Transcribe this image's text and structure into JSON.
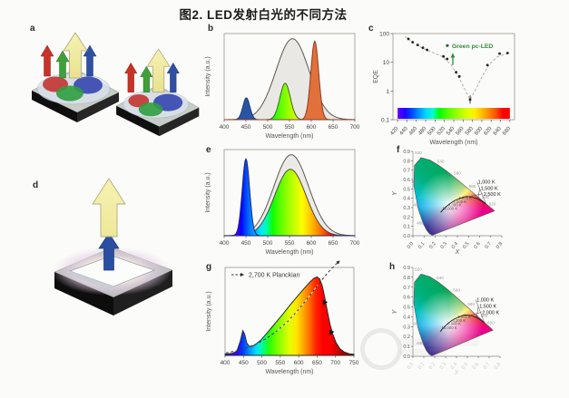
{
  "figure": {
    "title": "图2.  LED发射白光的不同方法",
    "panel_labels": {
      "a": "a",
      "b": "b",
      "c": "c",
      "d": "d",
      "e": "e",
      "f": "f",
      "g": "g",
      "h": "h"
    }
  },
  "cie_locus": [
    [
      0.1741,
      0.005
    ],
    [
      0.15,
      0.02
    ],
    [
      0.1241,
      0.0578
    ],
    [
      0.0913,
      0.1327
    ],
    [
      0.0454,
      0.295
    ],
    [
      0.0082,
      0.5384
    ],
    [
      0.0139,
      0.7502
    ],
    [
      0.0743,
      0.8338
    ],
    [
      0.1547,
      0.8059
    ],
    [
      0.2296,
      0.7543
    ],
    [
      0.3023,
      0.6923
    ],
    [
      0.3731,
      0.6245
    ],
    [
      0.4441,
      0.5547
    ],
    [
      0.5125,
      0.4866
    ],
    [
      0.5752,
      0.4242
    ],
    [
      0.627,
      0.3725
    ],
    [
      0.6658,
      0.334
    ],
    [
      0.6915,
      0.3083
    ],
    [
      0.7347,
      0.2653
    ]
  ],
  "chart_data": [
    {
      "id": "b",
      "type": "area",
      "xlabel": "Wavelength (nm)",
      "ylabel": "Intensity (a.u.)",
      "xlim": [
        400,
        700
      ],
      "xticks": [
        400,
        450,
        500,
        550,
        600,
        650,
        700
      ],
      "series": [
        {
          "name": "phosphor-envelope",
          "shape": "gaussian",
          "center": 557,
          "sigma": 38,
          "height": 1.0,
          "fill": "#e9e8e4",
          "stroke": "#5d574f"
        },
        {
          "name": "blue-led-peak",
          "shape": "gaussian",
          "center": 451,
          "sigma": 8,
          "height": 0.27,
          "fill": "#2b55a3",
          "stroke": "#1c3a78"
        },
        {
          "name": "green-led-peak",
          "shape": "gaussian",
          "center": 540,
          "sigma": 12,
          "height": 0.45,
          "fill": "spectral",
          "stroke": "#43602c"
        },
        {
          "name": "orange-led-peak",
          "shape": "gaussian",
          "center": 608,
          "sigma": 9,
          "height": 0.97,
          "fill": "#e0713a",
          "stroke": "#8f3c22"
        }
      ]
    },
    {
      "id": "c",
      "type": "scatter-log",
      "xlabel": "Wavelength (nm)",
      "ylabel": "EQE",
      "xlim": [
        410,
        670
      ],
      "xticks": [
        420,
        440,
        460,
        480,
        500,
        520,
        540,
        560,
        580,
        600,
        620,
        640,
        660
      ],
      "yticks": [
        0.1,
        1,
        10,
        100
      ],
      "points": [
        [
          443,
          65
        ],
        [
          452,
          50
        ],
        [
          463,
          40
        ],
        [
          474,
          32
        ],
        [
          483,
          27
        ],
        [
          518,
          16
        ],
        [
          526,
          13
        ],
        [
          545,
          4.5
        ],
        [
          552,
          3.2
        ],
        [
          575,
          0.5
        ],
        [
          612,
          8
        ],
        [
          638,
          20
        ],
        [
          655,
          21
        ]
      ],
      "trend": [
        [
          435,
          80
        ],
        [
          455,
          46
        ],
        [
          475,
          30
        ],
        [
          495,
          22
        ],
        [
          515,
          16
        ],
        [
          535,
          8
        ],
        [
          555,
          2.2
        ],
        [
          575,
          0.5
        ],
        [
          588,
          1.2
        ],
        [
          600,
          3
        ],
        [
          615,
          8
        ],
        [
          632,
          15
        ],
        [
          660,
          22
        ]
      ],
      "annotation": {
        "label": "Green pc-LED",
        "color": "#2e8b3a",
        "x": 538,
        "dot_y": 38,
        "arrow_from": 8,
        "arrow_to": 19
      },
      "colorbar": {
        "from": 420,
        "to": 660
      }
    },
    {
      "id": "e",
      "type": "area",
      "xlabel": "Wavelength (nm)",
      "ylabel": "Intensity (a.u.)",
      "xlim": [
        400,
        700
      ],
      "xticks": [
        400,
        450,
        500,
        550,
        600,
        650,
        700
      ],
      "series": [
        {
          "name": "phosphor-envelope",
          "shape": "gaussian",
          "center": 554,
          "sigma": 40,
          "height": 1.0,
          "fill": "#eceae6",
          "stroke": "#5d574f"
        },
        {
          "name": "phosphor-emission",
          "shape": "gaussian",
          "center": 552,
          "sigma": 36,
          "height": 0.82,
          "fill": "spectral",
          "stroke": "#4d4a40"
        },
        {
          "name": "blue-led-peak",
          "shape": "gaussian",
          "center": 450,
          "sigma": 8.5,
          "height": 0.95,
          "fill": "spectral",
          "stroke": "#27246e"
        }
      ]
    },
    {
      "id": "f",
      "type": "cie",
      "xlabel": "X",
      "ylabel": "Y",
      "xlim": [
        0,
        0.8
      ],
      "ylim": [
        0,
        0.9
      ],
      "xticks": [
        0.0,
        0.1,
        0.2,
        0.3,
        0.4,
        0.5,
        0.6,
        0.7,
        0.8
      ],
      "yticks": [
        0.0,
        0.1,
        0.2,
        0.3,
        0.4,
        0.5,
        0.6,
        0.7,
        0.8,
        0.9
      ],
      "faded_xaxis": false,
      "planckian": [
        [
          0.655,
          0.342
        ],
        [
          0.62,
          0.37
        ],
        [
          0.585,
          0.393
        ],
        [
          0.555,
          0.405
        ],
        [
          0.527,
          0.413
        ],
        [
          0.5,
          0.417
        ],
        [
          0.475,
          0.418
        ],
        [
          0.455,
          0.412
        ],
        [
          0.437,
          0.404
        ],
        [
          0.405,
          0.39
        ],
        [
          0.38,
          0.377
        ],
        [
          0.352,
          0.358
        ],
        [
          0.322,
          0.332
        ],
        [
          0.295,
          0.305
        ],
        [
          0.28,
          0.288
        ],
        [
          0.262,
          0.265
        ],
        [
          0.25,
          0.25
        ]
      ],
      "temperature_labels": [
        {
          "text": "1,000 K",
          "x": 0.585,
          "y": 0.555,
          "tx": 0.655,
          "ty": 0.345
        },
        {
          "text": "1,500 K",
          "x": 0.61,
          "y": 0.49,
          "tx": 0.585,
          "ty": 0.395
        },
        {
          "text": "2,500 K",
          "x": 0.635,
          "y": 0.428,
          "tx": 0.5,
          "ty": 0.418
        }
      ],
      "inner_labels": [
        {
          "text": "3,000 K",
          "x": 0.41,
          "y": 0.385
        },
        {
          "text": "4,000 K",
          "x": 0.362,
          "y": 0.35
        },
        {
          "text": "6,000 K",
          "x": 0.318,
          "y": 0.315
        },
        {
          "text": "10,000 K",
          "x": 0.262,
          "y": 0.275
        }
      ],
      "boundary_labels": [
        {
          "text": "520",
          "x": 0.05,
          "y": 0.87
        },
        {
          "text": "540",
          "x": 0.25,
          "y": 0.78
        },
        {
          "text": "560",
          "x": 0.4,
          "y": 0.655
        },
        {
          "text": "580",
          "x": 0.535,
          "y": 0.515
        },
        {
          "text": "600",
          "x": 0.655,
          "y": 0.395
        },
        {
          "text": "620",
          "x": 0.715,
          "y": 0.325
        },
        {
          "text": "500",
          "x": 0.02,
          "y": 0.56
        },
        {
          "text": "490",
          "x": 0.035,
          "y": 0.315
        },
        {
          "text": "480",
          "x": 0.065,
          "y": 0.12
        }
      ]
    },
    {
      "id": "g",
      "type": "area-curve",
      "xlabel": "Wavelength (nm)",
      "ylabel": "Intensity (a.u.)",
      "xlim": [
        400,
        750
      ],
      "xticks": [
        400,
        450,
        500,
        550,
        600,
        650,
        700,
        750
      ],
      "legend": {
        "label": "2,700 K Planckian"
      },
      "curve": [
        [
          400,
          0.015
        ],
        [
          420,
          0.025
        ],
        [
          432,
          0.05
        ],
        [
          442,
          0.18
        ],
        [
          448,
          0.3
        ],
        [
          453,
          0.26
        ],
        [
          459,
          0.15
        ],
        [
          466,
          0.11
        ],
        [
          474,
          0.11
        ],
        [
          485,
          0.14
        ],
        [
          498,
          0.19
        ],
        [
          512,
          0.26
        ],
        [
          527,
          0.34
        ],
        [
          542,
          0.42
        ],
        [
          557,
          0.5
        ],
        [
          572,
          0.585
        ],
        [
          587,
          0.665
        ],
        [
          602,
          0.745
        ],
        [
          617,
          0.82
        ],
        [
          630,
          0.885
        ],
        [
          642,
          0.935
        ],
        [
          650,
          0.95
        ],
        [
          657,
          0.925
        ],
        [
          664,
          0.84
        ],
        [
          671,
          0.7
        ],
        [
          678,
          0.53
        ],
        [
          685,
          0.38
        ],
        [
          693,
          0.25
        ],
        [
          702,
          0.15
        ],
        [
          712,
          0.08
        ],
        [
          724,
          0.04
        ],
        [
          738,
          0.02
        ],
        [
          750,
          0.013
        ]
      ],
      "planckian": [
        [
          402,
          0.03
        ],
        [
          430,
          0.055
        ],
        [
          458,
          0.09
        ],
        [
          486,
          0.14
        ],
        [
          514,
          0.21
        ],
        [
          542,
          0.3
        ],
        [
          570,
          0.41
        ],
        [
          598,
          0.545
        ],
        [
          626,
          0.7
        ],
        [
          652,
          0.85
        ],
        [
          676,
          0.985
        ],
        [
          696,
          1.08
        ],
        [
          710,
          1.14
        ]
      ]
    },
    {
      "id": "h",
      "type": "cie",
      "xlabel": "X",
      "ylabel": "Y",
      "xlim": [
        0,
        0.8
      ],
      "ylim": [
        0,
        0.9
      ],
      "xticks": [
        0.0,
        0.1,
        0.2,
        0.3,
        0.4,
        0.5,
        0.6,
        0.7,
        0.8
      ],
      "yticks": [
        0.0,
        0.1,
        0.2,
        0.3,
        0.4,
        0.5,
        0.6,
        0.7,
        0.8,
        0.9
      ],
      "faded_xaxis": true,
      "planckian": [
        [
          0.655,
          0.342
        ],
        [
          0.62,
          0.37
        ],
        [
          0.585,
          0.393
        ],
        [
          0.555,
          0.405
        ],
        [
          0.527,
          0.413
        ],
        [
          0.5,
          0.417
        ],
        [
          0.475,
          0.418
        ],
        [
          0.455,
          0.412
        ],
        [
          0.437,
          0.404
        ],
        [
          0.405,
          0.39
        ],
        [
          0.38,
          0.377
        ],
        [
          0.352,
          0.358
        ],
        [
          0.322,
          0.332
        ],
        [
          0.295,
          0.305
        ],
        [
          0.28,
          0.288
        ],
        [
          0.262,
          0.265
        ],
        [
          0.25,
          0.25
        ]
      ],
      "temperature_labels": [
        {
          "text": "1,000 K",
          "x": 0.585,
          "y": 0.555,
          "tx": 0.655,
          "ty": 0.345
        },
        {
          "text": "1,500 K",
          "x": 0.61,
          "y": 0.49,
          "tx": 0.585,
          "ty": 0.395
        },
        {
          "text": "2,000 K",
          "x": 0.635,
          "y": 0.428,
          "tx": 0.527,
          "ty": 0.415
        }
      ],
      "inner_labels": [
        {
          "text": "3,000 K",
          "x": 0.41,
          "y": 0.385
        },
        {
          "text": "4,000 K",
          "x": 0.362,
          "y": 0.35
        },
        {
          "text": "6,000 K",
          "x": 0.318,
          "y": 0.315
        },
        {
          "text": "10,000 K",
          "x": 0.262,
          "y": 0.275
        }
      ],
      "boundary_labels": [
        {
          "text": "520",
          "x": 0.05,
          "y": 0.87
        },
        {
          "text": "540",
          "x": 0.25,
          "y": 0.78
        },
        {
          "text": "560",
          "x": 0.4,
          "y": 0.655
        },
        {
          "text": "580",
          "x": 0.535,
          "y": 0.515
        },
        {
          "text": "600",
          "x": 0.655,
          "y": 0.395
        },
        {
          "text": "620",
          "x": 0.715,
          "y": 0.325
        },
        {
          "text": "490",
          "x": 0.035,
          "y": 0.315
        },
        {
          "text": "480",
          "x": 0.065,
          "y": 0.12
        }
      ]
    }
  ]
}
